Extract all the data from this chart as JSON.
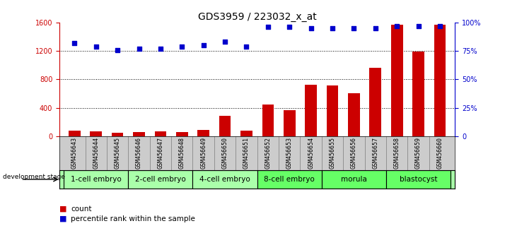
{
  "title": "GDS3959 / 223032_x_at",
  "samples": [
    "GSM456643",
    "GSM456644",
    "GSM456645",
    "GSM456646",
    "GSM456647",
    "GSM456648",
    "GSM456649",
    "GSM456650",
    "GSM456651",
    "GSM456652",
    "GSM456653",
    "GSM456654",
    "GSM456655",
    "GSM456656",
    "GSM456657",
    "GSM456658",
    "GSM456659",
    "GSM456660"
  ],
  "counts": [
    75,
    65,
    45,
    55,
    70,
    60,
    85,
    290,
    75,
    450,
    370,
    720,
    710,
    610,
    960,
    1570,
    1190,
    1570
  ],
  "percentiles": [
    82,
    79,
    76,
    77,
    77,
    79,
    80,
    83,
    79,
    96,
    96,
    95,
    95,
    95,
    95,
    97,
    97,
    97
  ],
  "bar_color": "#cc0000",
  "dot_color": "#0000cc",
  "ylim_left": [
    0,
    1600
  ],
  "yticks_left": [
    0,
    400,
    800,
    1200,
    1600
  ],
  "yticks_right": [
    0,
    25,
    50,
    75,
    100
  ],
  "ytick_labels_right": [
    "0",
    "25%",
    "50%",
    "75%",
    "100%"
  ],
  "groups": [
    {
      "label": "1-cell embryo",
      "start": 0,
      "end": 3,
      "color": "#aaffaa"
    },
    {
      "label": "2-cell embryo",
      "start": 3,
      "end": 6,
      "color": "#aaffaa"
    },
    {
      "label": "4-cell embryo",
      "start": 6,
      "end": 9,
      "color": "#aaffaa"
    },
    {
      "label": "8-cell embryo",
      "start": 9,
      "end": 12,
      "color": "#66ff66"
    },
    {
      "label": "morula",
      "start": 12,
      "end": 15,
      "color": "#66ff66"
    },
    {
      "label": "blastocyst",
      "start": 15,
      "end": 18,
      "color": "#66ff66"
    }
  ],
  "dev_stage_label": "development stage",
  "legend_count_label": "count",
  "legend_pct_label": "percentile rank within the sample",
  "background_color": "#ffffff",
  "sample_bg_color": "#cccccc",
  "title_fontsize": 10,
  "tick_fontsize": 7,
  "group_fontsize": 7.5,
  "sample_fontsize": 6
}
